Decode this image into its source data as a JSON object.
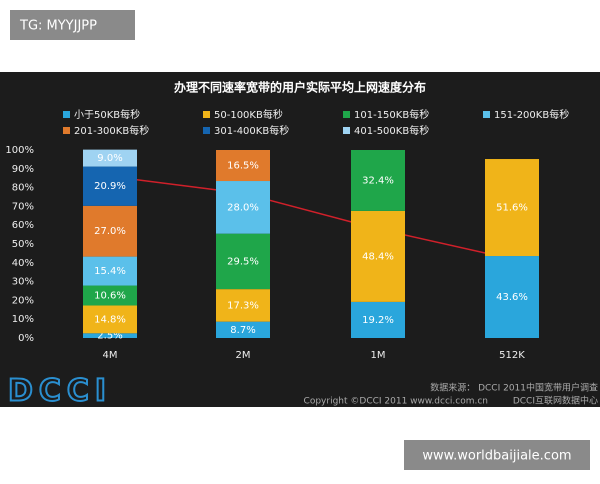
{
  "watermarks": [
    "TG: MYYJJPP",
    "www.worldbaijiale.com"
  ],
  "footer": {
    "logo": "DCCI",
    "source": "数据来源： DCCI 2011中国宽带用户调查",
    "copyright": "Copyright ©DCCI 2011 www.dcci.com.cn",
    "org": "DCCI互联网数据中心"
  },
  "chart_data": {
    "type": "stacked_bar",
    "title": "办理不同速率宽带的用户实际平均上网速度分布",
    "categories": [
      "4M",
      "2M",
      "1M",
      "512K"
    ],
    "ylim": [
      0,
      100
    ],
    "yticks": [
      {
        "value": 0,
        "label": "0%"
      },
      {
        "value": 10,
        "label": "10%"
      },
      {
        "value": 20,
        "label": "20%"
      },
      {
        "value": 30,
        "label": "30%"
      },
      {
        "value": 40,
        "label": "40%"
      },
      {
        "value": 50,
        "label": "50%"
      },
      {
        "value": 60,
        "label": "60%"
      },
      {
        "value": 70,
        "label": "70%"
      },
      {
        "value": 80,
        "label": "80%"
      },
      {
        "value": 90,
        "label": "90%"
      },
      {
        "value": 100,
        "label": "100%"
      }
    ],
    "grid": false,
    "series": [
      {
        "name": "小于50KB每秒",
        "color": "#2aa6dc",
        "values": [
          2.5,
          8.7,
          19.2,
          43.6
        ],
        "value_labels": [
          "2.5%",
          "8.7%",
          "19.2%",
          "43.6%"
        ]
      },
      {
        "name": "50-100KB每秒",
        "color": "#f0b419",
        "values": [
          14.8,
          17.3,
          48.4,
          51.6
        ],
        "value_labels": [
          "14.8%",
          "17.3%",
          "48.4%",
          "51.6%"
        ]
      },
      {
        "name": "101-150KB每秒",
        "color": "#1fa64a",
        "values": [
          10.6,
          29.5,
          32.4,
          null
        ],
        "value_labels": [
          "10.6%",
          "29.5%",
          "32.4%",
          null
        ]
      },
      {
        "name": "151-200KB每秒",
        "color": "#5bc0ea",
        "values": [
          15.4,
          28.0,
          null,
          null
        ],
        "value_labels": [
          "15.4%",
          "28.0%",
          null,
          null
        ]
      },
      {
        "name": "201-300KB每秒",
        "color": "#e07a2c",
        "values": [
          27.0,
          16.5,
          null,
          null
        ],
        "value_labels": [
          "27.0%",
          "16.5%",
          null,
          null
        ]
      },
      {
        "name": "301-400KB每秒",
        "color": "#1565b0",
        "values": [
          20.9,
          null,
          null,
          null
        ],
        "value_labels": [
          "20.9%",
          null,
          null,
          null
        ]
      },
      {
        "name": "401-500KB每秒",
        "color": "#9fd3f2",
        "values": [
          9.0,
          null,
          null,
          null
        ],
        "value_labels": [
          "9.0%",
          null,
          null,
          null
        ]
      }
    ],
    "line": {
      "color": "#d0202a",
      "values": [
        86,
        77,
        58,
        42
      ]
    }
  }
}
